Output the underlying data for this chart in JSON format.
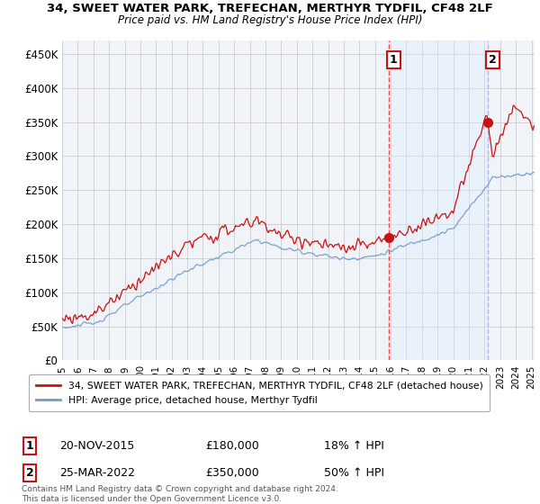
{
  "title": "34, SWEET WATER PARK, TREFECHAN, MERTHYR TYDFIL, CF48 2LF",
  "subtitle": "Price paid vs. HM Land Registry's House Price Index (HPI)",
  "ylabel_ticks": [
    "£0",
    "£50K",
    "£100K",
    "£150K",
    "£200K",
    "£250K",
    "£300K",
    "£350K",
    "£400K",
    "£450K"
  ],
  "ytick_values": [
    0,
    50000,
    100000,
    150000,
    200000,
    250000,
    300000,
    350000,
    400000,
    450000
  ],
  "ylim": [
    0,
    470000
  ],
  "xlim_start": 1995.0,
  "xlim_end": 2025.2,
  "sale1_date": 2015.88,
  "sale1_price": 180000,
  "sale1_label": "1",
  "sale2_date": 2022.23,
  "sale2_price": 350000,
  "sale2_label": "2",
  "hpi_color": "#7099cc",
  "price_color": "#cc1111",
  "vline1_color": "#ff4444",
  "vline2_color": "#aabbdd",
  "shade_color": "#ddeeff",
  "marker_color": "#cc1111",
  "grid_color": "#cccccc",
  "background_color": "#f0f4f8",
  "legend_label_price": "34, SWEET WATER PARK, TREFECHAN, MERTHYR TYDFIL, CF48 2LF (detached house)",
  "legend_label_hpi": "HPI: Average price, detached house, Merthyr Tydfil",
  "annotation1_date": "20-NOV-2015",
  "annotation1_price": "£180,000",
  "annotation1_hpi": "18% ↑ HPI",
  "annotation2_date": "25-MAR-2022",
  "annotation2_price": "£350,000",
  "annotation2_hpi": "50% ↑ HPI",
  "footnote": "Contains HM Land Registry data © Crown copyright and database right 2024.\nThis data is licensed under the Open Government Licence v3.0."
}
